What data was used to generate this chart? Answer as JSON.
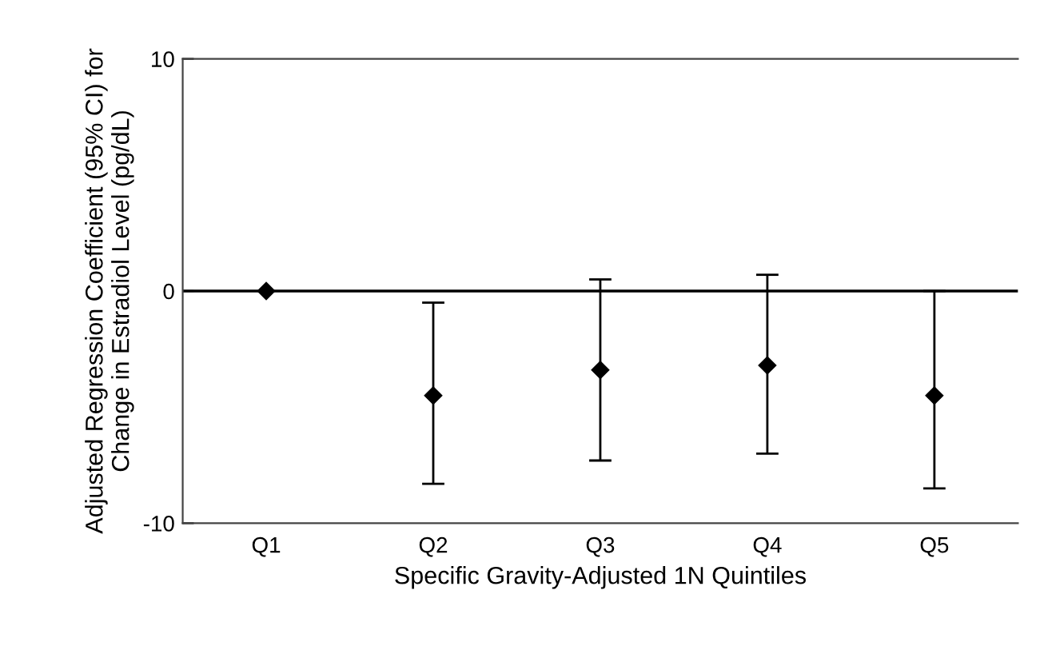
{
  "chart_data": {
    "type": "scatter",
    "xlabel": "Specific Gravity-Adjusted 1N Quintiles",
    "ylabel": "Adjusted Regression Coefficient (95% CI) for\nChange in Estradiol Level (pg/dL)",
    "categories": [
      "Q1",
      "Q2",
      "Q3",
      "Q4",
      "Q5"
    ],
    "values": [
      0,
      -4.5,
      -3.4,
      -3.2,
      -4.5
    ],
    "errors": [
      null,
      [
        -8.3,
        -0.5
      ],
      [
        -7.3,
        0.5
      ],
      [
        -7.0,
        0.7
      ],
      [
        -8.5,
        0
      ]
    ],
    "color": "#000000",
    "marker": "diamond",
    "ylim": [
      -10,
      10
    ],
    "yticks": [
      -10,
      0,
      10
    ],
    "ref_lines": [
      {
        "axis": "y",
        "value": 0,
        "color": "#000000"
      }
    ],
    "grid": false,
    "legend": false
  }
}
